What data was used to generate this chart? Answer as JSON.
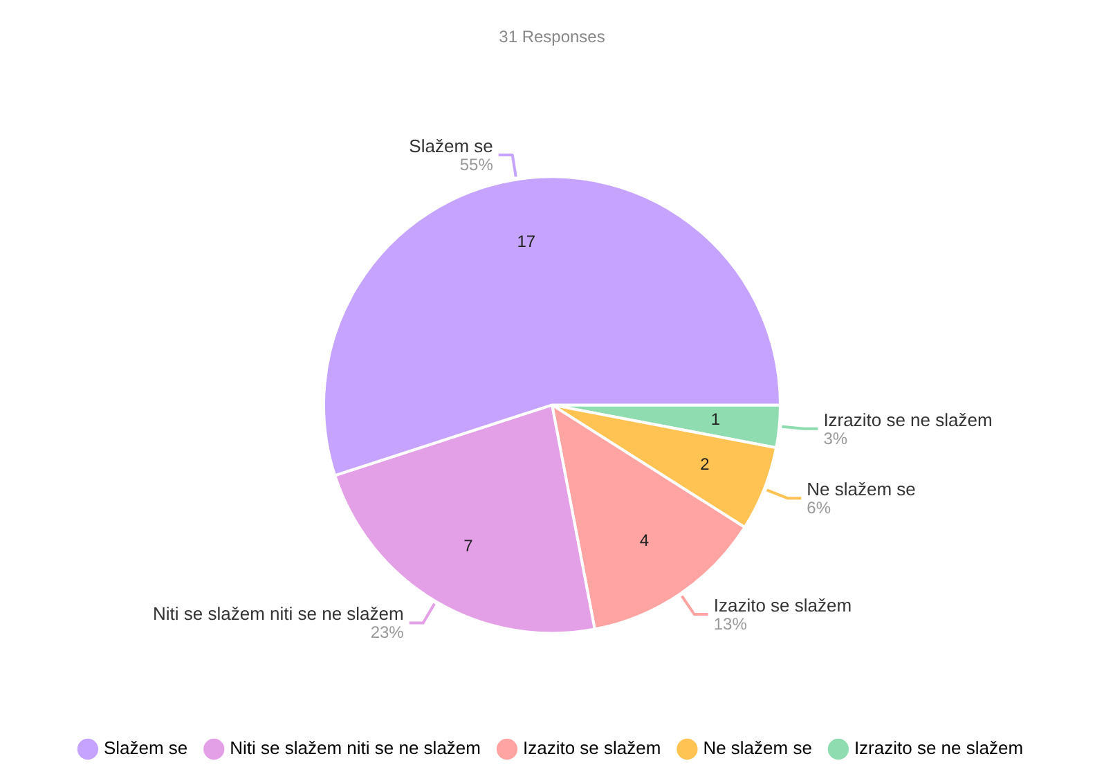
{
  "chart_data": {
    "type": "pie",
    "title": "31 Responses",
    "categories": [
      "Slažem se",
      "Niti se slažem niti se ne slažem",
      "Izazito se slažem",
      "Ne slažem se",
      "Izrazito se ne slažem"
    ],
    "values": [
      55,
      23,
      13,
      6,
      3
    ],
    "colors": [
      "#c5a3ff",
      "#e3a0e6",
      "#ffa3a3",
      "#ffc353",
      "#8fdcb0"
    ],
    "value_labels": [
      "55%",
      "23%",
      "13%",
      "6%",
      "3%"
    ],
    "annotations": [
      "17",
      "7",
      "4",
      "2",
      "1"
    ],
    "legend": "bottom"
  }
}
